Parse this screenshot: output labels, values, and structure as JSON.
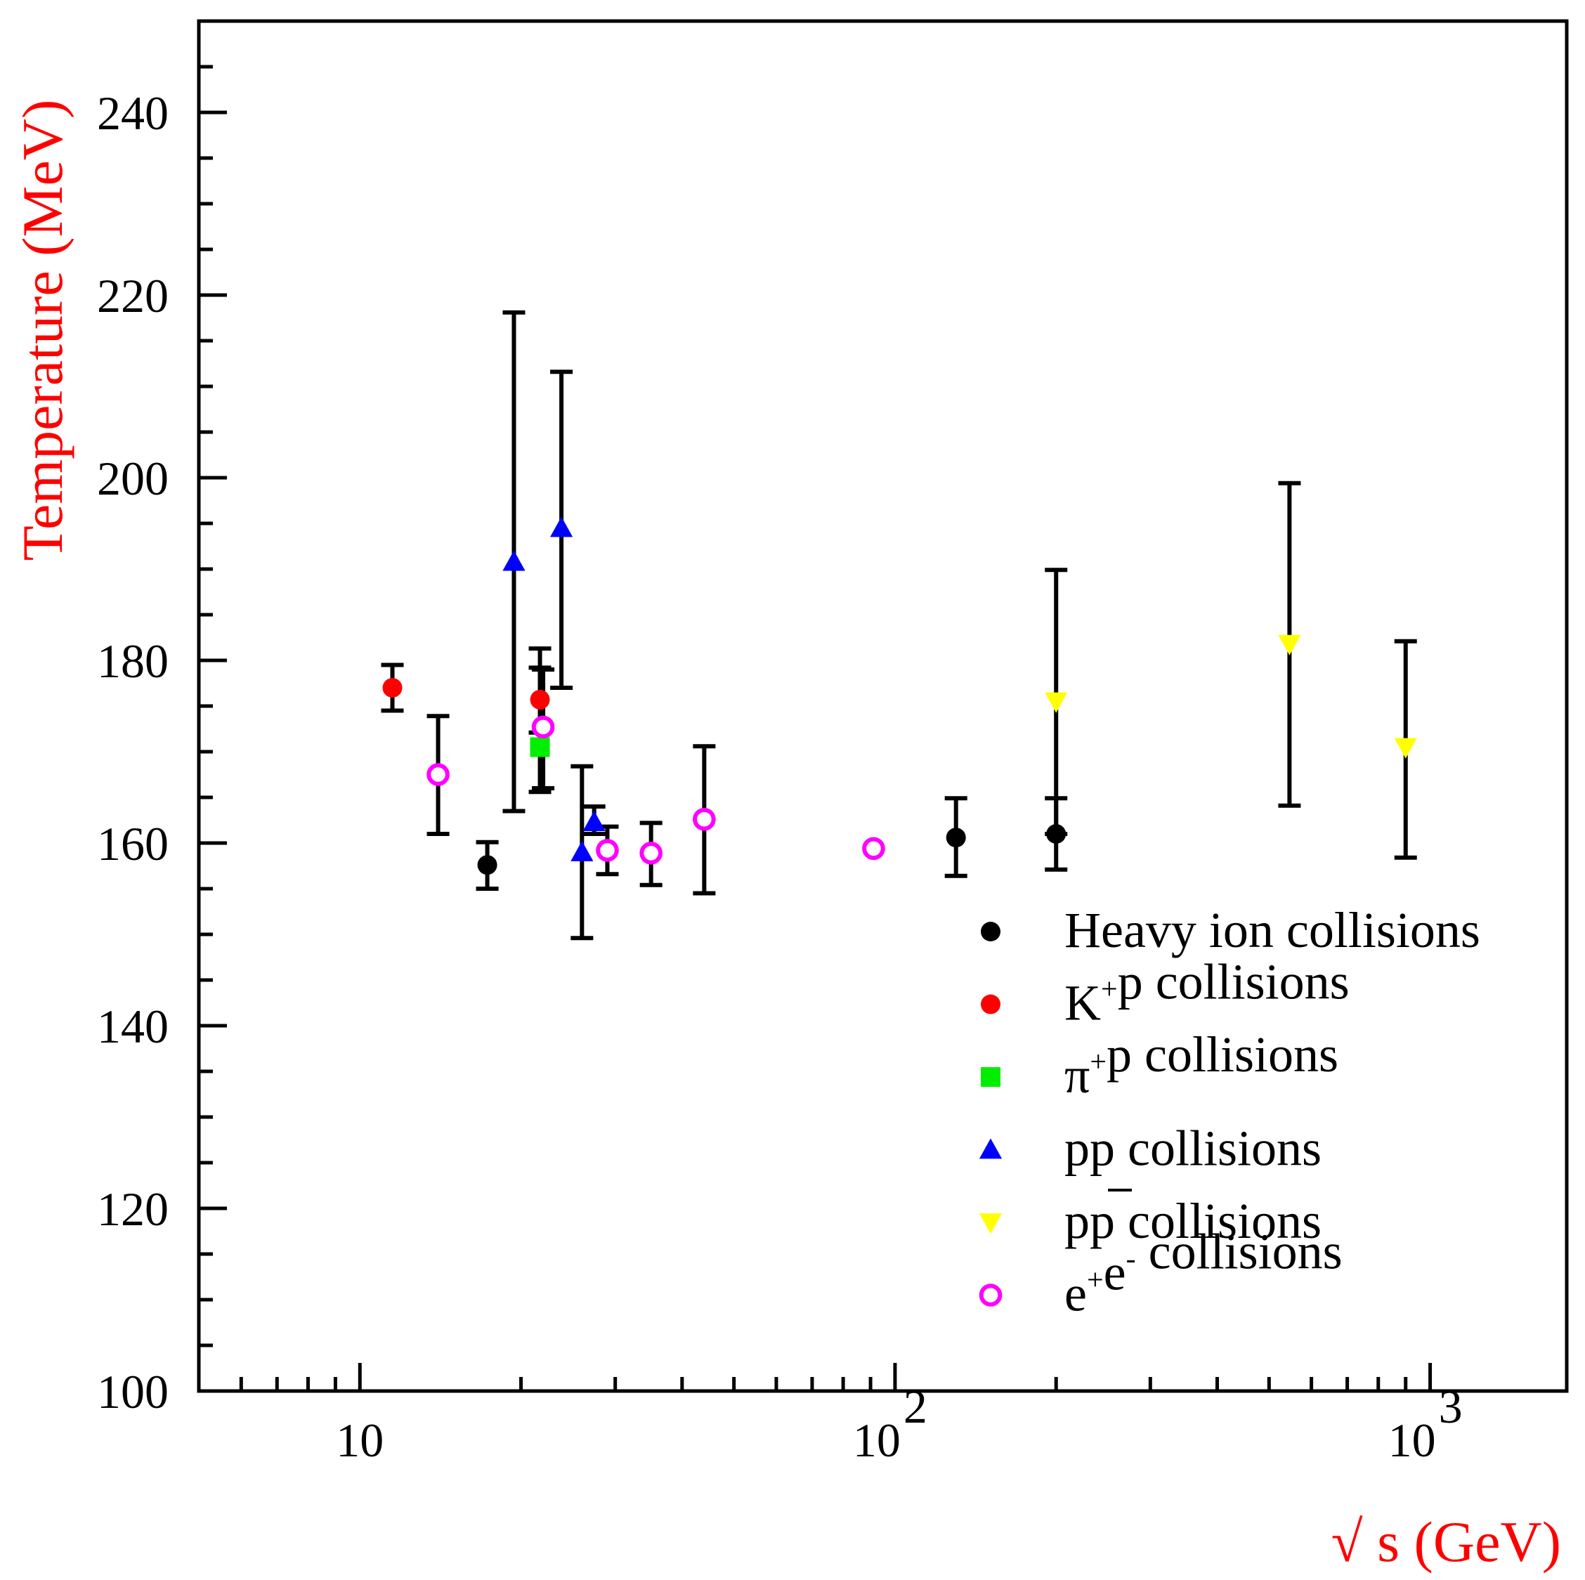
{
  "chart_data": {
    "type": "scatter",
    "title": "",
    "xlabel": "√ s (GeV)",
    "ylabel": "Temperature (MeV)",
    "x_scale": "log",
    "xlim": [
      5,
      1800
    ],
    "ylim": [
      100,
      250
    ],
    "y_ticks": [
      100,
      120,
      140,
      160,
      180,
      200,
      220,
      240
    ],
    "y_tick_labels": [
      "100",
      "120",
      "140",
      "160",
      "180",
      "200",
      "220",
      "240"
    ],
    "x_ticks": [
      10,
      100,
      1000
    ],
    "x_tick_labels": [
      {
        "base": "10",
        "exp": ""
      },
      {
        "base": "10",
        "exp": "2"
      },
      {
        "base": "10",
        "exp": "3"
      }
    ],
    "grid": false,
    "legend_position": "bottom-right",
    "series": [
      {
        "name": "Heavy ion collisions",
        "label": {
          "pre": "Heavy ion collisions",
          "sup": "",
          "mid": "",
          "sup2": "",
          "post": ""
        },
        "marker": "circle",
        "filled": true,
        "color": "#000000",
        "points": [
          {
            "x": 17.3,
            "y": 157.6,
            "lo": 155.0,
            "hi": 160.1
          },
          {
            "x": 130,
            "y": 160.6,
            "lo": 156.4,
            "hi": 164.9
          },
          {
            "x": 200,
            "y": 161.0,
            "lo": 157.1,
            "hi": 164.9
          }
        ]
      },
      {
        "name": "K+p collisions",
        "label": {
          "pre": "K",
          "sup": "+",
          "mid": "p collisions",
          "sup2": "",
          "post": ""
        },
        "marker": "circle",
        "filled": true,
        "color": "#ff0000",
        "points": [
          {
            "x": 11.5,
            "y": 177.0,
            "lo": 174.5,
            "hi": 179.5
          },
          {
            "x": 21.7,
            "y": 175.7,
            "lo": 172.1,
            "hi": 179.2
          }
        ]
      },
      {
        "name": "π+p collisions",
        "label": {
          "pre": "π",
          "sup": "+",
          "mid": "p collisions",
          "sup2": "",
          "post": ""
        },
        "marker": "square",
        "filled": true,
        "color": "#00ee00",
        "points": [
          {
            "x": 21.7,
            "y": 170.5,
            "lo": 165.6,
            "hi": 181.3
          }
        ]
      },
      {
        "name": "pp collisions",
        "label": {
          "pre": "pp collisions",
          "sup": "",
          "mid": "",
          "sup2": "",
          "post": ""
        },
        "marker": "triangle-up",
        "filled": true,
        "color": "#0000ff",
        "points": [
          {
            "x": 19.4,
            "y": 190.8,
            "lo": 163.5,
            "hi": 218.1
          },
          {
            "x": 23.8,
            "y": 194.5,
            "lo": 177.0,
            "hi": 211.6
          },
          {
            "x": 26.0,
            "y": 159.0,
            "lo": 149.6,
            "hi": 168.4
          },
          {
            "x": 27.4,
            "y": 162.3,
            "lo": 161.0,
            "hi": 164.0
          }
        ]
      },
      {
        "name": "pp̄ collisions",
        "label": {
          "pre": "pp collisions",
          "sup": "",
          "mid": "",
          "sup2": "",
          "post": ""
        },
        "marker": "triangle-down",
        "filled": true,
        "color": "#ffff00",
        "points": [
          {
            "x": 200,
            "y": 175.5,
            "lo": 161.0,
            "hi": 189.9
          },
          {
            "x": 546,
            "y": 181.8,
            "lo": 164.1,
            "hi": 199.4
          },
          {
            "x": 900,
            "y": 170.5,
            "lo": 158.4,
            "hi": 182.1
          }
        ]
      },
      {
        "name": "e+e- collisions",
        "label": {
          "pre": "e",
          "sup": "+",
          "mid": "e",
          "sup2": "-",
          "post": " collisions"
        },
        "marker": "circle",
        "filled": false,
        "color": "#ff00ff",
        "points": [
          {
            "x": 14.0,
            "y": 167.5,
            "lo": 161.0,
            "hi": 173.9
          },
          {
            "x": 22.0,
            "y": 172.7,
            "lo": 166.0,
            "hi": 179.0
          },
          {
            "x": 29.0,
            "y": 159.2,
            "lo": 156.6,
            "hi": 161.8
          },
          {
            "x": 35.0,
            "y": 158.9,
            "lo": 155.4,
            "hi": 162.2
          },
          {
            "x": 44.0,
            "y": 162.6,
            "lo": 154.5,
            "hi": 170.6
          },
          {
            "x": 91.2,
            "y": 159.4,
            "lo": null,
            "hi": null
          }
        ]
      }
    ]
  }
}
